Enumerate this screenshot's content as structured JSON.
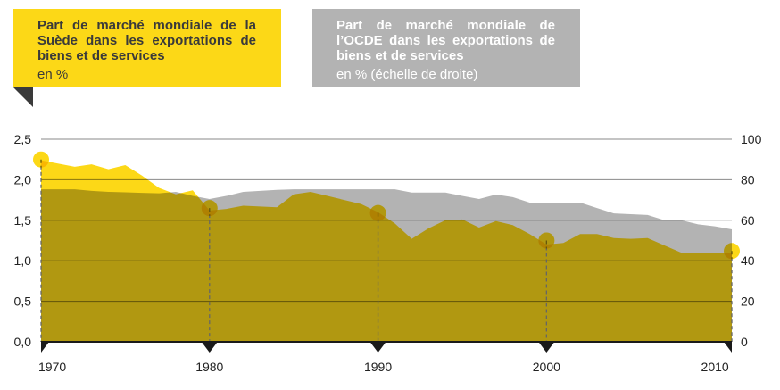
{
  "legend": {
    "sweden": {
      "title": "Part de marché mondiale de la Suède dans les exportations de biens et de services",
      "unit": "en %"
    },
    "oecd": {
      "title": "Part de marché mondiale de l’OCDE dans les exportations de biens et de services",
      "unit": "en % (échelle de droite)"
    }
  },
  "chart_data": {
    "type": "area",
    "x": [
      1970,
      1971,
      1972,
      1973,
      1974,
      1975,
      1976,
      1977,
      1978,
      1979,
      1980,
      1981,
      1982,
      1983,
      1984,
      1985,
      1986,
      1987,
      1988,
      1989,
      1990,
      1991,
      1992,
      1993,
      1994,
      1995,
      1996,
      1997,
      1998,
      1999,
      2000,
      2001,
      2002,
      2003,
      2004,
      2005,
      2006,
      2007,
      2008,
      2009,
      2010,
      2011
    ],
    "series": [
      {
        "name": "Part de marché mondiale de l’OCDE dans les exportations de biens et de services",
        "axis": "right",
        "color": "#B3B3B3",
        "values": [
          75.3,
          75.3,
          75.3,
          74.5,
          74,
          73.8,
          73.5,
          73.3,
          74,
          72,
          70.5,
          72,
          74,
          74.5,
          75,
          75.3,
          75.3,
          75.3,
          75.3,
          75.3,
          75.3,
          75.3,
          73.7,
          73.7,
          73.7,
          72,
          70.5,
          72.7,
          71.4,
          68.7,
          68.7,
          68.7,
          68.7,
          66,
          63.4,
          63,
          62.6,
          60,
          60,
          58,
          57,
          55.5
        ]
      },
      {
        "name": "Part de marché mondiale de la Suède dans les exportations de biens et de services",
        "axis": "left",
        "color": "#FCD817",
        "values": [
          2.24,
          2.2,
          2.16,
          2.19,
          2.13,
          2.18,
          2.05,
          1.9,
          1.82,
          1.87,
          1.62,
          1.64,
          1.68,
          1.67,
          1.66,
          1.82,
          1.85,
          1.8,
          1.75,
          1.7,
          1.6,
          1.46,
          1.27,
          1.4,
          1.5,
          1.51,
          1.41,
          1.49,
          1.44,
          1.33,
          1.2,
          1.22,
          1.33,
          1.33,
          1.28,
          1.27,
          1.28,
          1.19,
          1.1,
          1.1,
          1.1,
          1.1
        ]
      }
    ],
    "highlights": [
      {
        "x": 1970,
        "y": 2.25
      },
      {
        "x": 1980,
        "y": 1.65
      },
      {
        "x": 1990,
        "y": 1.59
      },
      {
        "x": 2000,
        "y": 1.25
      },
      {
        "x": 2011,
        "y": 1.12
      }
    ],
    "xticks": [
      1970,
      1980,
      1990,
      2000,
      2010
    ],
    "xtick_labels": [
      "1970",
      "1980",
      "1990",
      "2000",
      "2010"
    ],
    "ylim_left": [
      0,
      2.5
    ],
    "yticks_left": [
      "0,0",
      "0,5",
      "1,0",
      "1,5",
      "2,0",
      "2,5"
    ],
    "ylim_right": [
      0,
      100
    ],
    "yticks_right": [
      "0",
      "20",
      "40",
      "60",
      "80",
      "100"
    ],
    "grid": true
  }
}
